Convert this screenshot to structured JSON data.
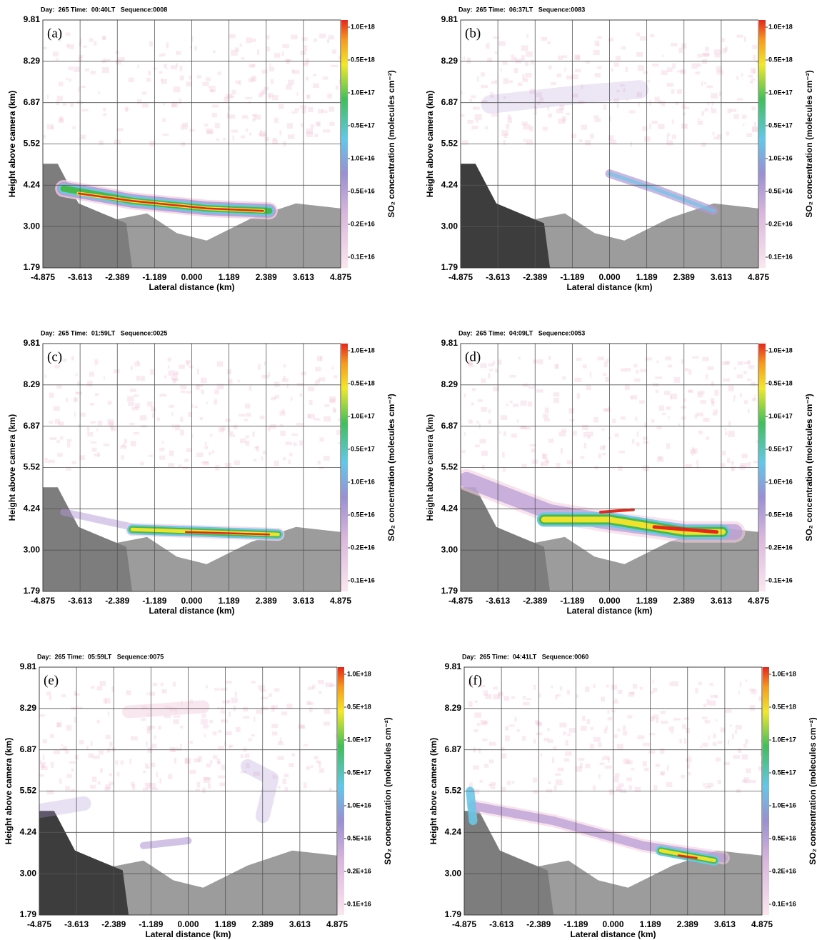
{
  "chart_data": [
    {
      "type": "image",
      "header": "Day:  265 Time:  00:40LT   Sequence:0008",
      "panel_label": "(a)",
      "x_label": "Lateral distance (km)",
      "y_label": "Height above camera (km)",
      "colorbar_label": "SO₂ concentration (molecules cm⁻²)",
      "xlim": [
        -4.875,
        4.875
      ],
      "xticks": [
        -4.875,
        -3.613,
        -2.389,
        -1.189,
        {
          "value": 0,
          "label": "0.000"
        },
        1.189,
        2.389,
        3.613,
        4.875
      ],
      "ylim": [
        1.79,
        9.81
      ],
      "yticks": [
        1.79,
        {
          "value": 3,
          "label": "3.00"
        },
        4.24,
        5.52,
        6.87,
        8.29,
        9.81
      ],
      "colorbar_ticks": [
        {
          "value": 1e+18,
          "label": "1.0E+18"
        },
        {
          "value": 5e+17,
          "label": "0.5E+18"
        },
        {
          "value": 1e+17,
          "label": "1.0E+17"
        },
        {
          "value": 5e+16,
          "label": "0.5E+17"
        },
        {
          "value": 1e+16,
          "label": "1.0E+16"
        },
        {
          "value": 5000000000000000.0,
          "label": "0.5E+16"
        },
        {
          "value": 2000000000000000.0,
          "label": "0.2E+16"
        },
        {
          "value": 1000000000000000.0,
          "label": "0.1E+16"
        }
      ],
      "grid": true
    },
    {
      "type": "image",
      "header": "Day:  265 Time:  06:37LT   Sequence:0083",
      "panel_label": "(b)",
      "x_label": "Lateral distance (km)",
      "y_label": "Height above camera (km)",
      "colorbar_label": "SO₂ concentration (molecules cm⁻²)",
      "xlim": [
        -4.875,
        4.875
      ],
      "xticks": [
        -4.875,
        -3.613,
        -2.389,
        -1.189,
        {
          "value": 0,
          "label": "0.000"
        },
        1.189,
        2.389,
        3.613,
        4.875
      ],
      "ylim": [
        1.79,
        9.81
      ],
      "yticks": [
        1.79,
        {
          "value": 3,
          "label": "3.00"
        },
        4.24,
        5.52,
        6.87,
        8.29,
        9.81
      ],
      "colorbar_ticks": [
        {
          "value": 1e+18,
          "label": "1.0E+18"
        },
        {
          "value": 5e+17,
          "label": "0.5E+18"
        },
        {
          "value": 1e+17,
          "label": "1.0E+17"
        },
        {
          "value": 5e+16,
          "label": "0.5E+17"
        },
        {
          "value": 1e+16,
          "label": "1.0E+16"
        },
        {
          "value": 5000000000000000.0,
          "label": "0.5E+16"
        },
        {
          "value": 2000000000000000.0,
          "label": "0.2E+16"
        },
        {
          "value": 1000000000000000.0,
          "label": "0.1E+16"
        }
      ],
      "grid": true
    },
    {
      "type": "image",
      "header": "Day:  265 Time:  01:59LT   Sequence:0025",
      "panel_label": "(c)",
      "x_label": "Lateral distance (km)",
      "y_label": "Height above camera (km)",
      "colorbar_label": "SO₂ concentration (molecules cm⁻²)",
      "xlim": [
        -4.875,
        4.875
      ],
      "xticks": [
        -4.875,
        -3.613,
        -2.389,
        -1.189,
        {
          "value": 0,
          "label": "0.000"
        },
        1.189,
        2.389,
        3.613,
        4.875
      ],
      "ylim": [
        1.79,
        9.81
      ],
      "yticks": [
        1.79,
        {
          "value": 3,
          "label": "3.00"
        },
        4.24,
        5.52,
        6.87,
        8.29,
        9.81
      ],
      "colorbar_ticks": [
        {
          "value": 1e+18,
          "label": "1.0E+18"
        },
        {
          "value": 5e+17,
          "label": "0.5E+18"
        },
        {
          "value": 1e+17,
          "label": "1.0E+17"
        },
        {
          "value": 5e+16,
          "label": "0.5E+17"
        },
        {
          "value": 1e+16,
          "label": "1.0E+16"
        },
        {
          "value": 5000000000000000.0,
          "label": "0.5E+16"
        },
        {
          "value": 2000000000000000.0,
          "label": "0.2E+16"
        },
        {
          "value": 1000000000000000.0,
          "label": "0.1E+16"
        }
      ],
      "grid": true
    },
    {
      "type": "image",
      "header": "Day:  265 Time:  04:09LT   Sequence:0053",
      "panel_label": "(d)",
      "x_label": "Lateral distance (km)",
      "y_label": "Height above camera (km)",
      "colorbar_label": "SO₂ concentration (molecules cm⁻²)",
      "xlim": [
        -4.875,
        4.875
      ],
      "xticks": [
        -4.875,
        -3.613,
        -2.389,
        -1.189,
        {
          "value": 0,
          "label": "0.000"
        },
        1.189,
        2.389,
        3.613,
        4.875
      ],
      "ylim": [
        1.79,
        9.81
      ],
      "yticks": [
        1.79,
        {
          "value": 3,
          "label": "3.00"
        },
        4.24,
        5.52,
        6.87,
        8.29,
        9.81
      ],
      "colorbar_ticks": [
        {
          "value": 1e+18,
          "label": "1.0E+18"
        },
        {
          "value": 5e+17,
          "label": "0.5E+18"
        },
        {
          "value": 1e+17,
          "label": "1.0E+17"
        },
        {
          "value": 5e+16,
          "label": "0.5E+17"
        },
        {
          "value": 1e+16,
          "label": "1.0E+16"
        },
        {
          "value": 5000000000000000.0,
          "label": "0.5E+16"
        },
        {
          "value": 2000000000000000.0,
          "label": "0.2E+16"
        },
        {
          "value": 1000000000000000.0,
          "label": "0.1E+16"
        }
      ],
      "grid": true
    },
    {
      "type": "image",
      "header": "Day:  265 Time:  05:59LT   Sequence:0075",
      "panel_label": "(e)",
      "x_label": "Lateral distance (km)",
      "y_label": "Height above camera (km)",
      "colorbar_label": "SO₂ concentration (molecules cm⁻²)",
      "xlim": [
        -4.875,
        4.875
      ],
      "xticks": [
        -4.875,
        -3.613,
        -2.389,
        -1.189,
        {
          "value": 0,
          "label": "0.000"
        },
        1.189,
        2.389,
        3.613,
        4.875
      ],
      "ylim": [
        1.79,
        9.81
      ],
      "yticks": [
        1.79,
        {
          "value": 3,
          "label": "3.00"
        },
        4.24,
        5.52,
        6.87,
        8.29,
        9.81
      ],
      "colorbar_ticks": [
        {
          "value": 1e+18,
          "label": "1.0E+18"
        },
        {
          "value": 5e+17,
          "label": "0.5E+18"
        },
        {
          "value": 1e+17,
          "label": "1.0E+17"
        },
        {
          "value": 5e+16,
          "label": "0.5E+17"
        },
        {
          "value": 1e+16,
          "label": "1.0E+16"
        },
        {
          "value": 5000000000000000.0,
          "label": "0.5E+16"
        },
        {
          "value": 2000000000000000.0,
          "label": "0.2E+16"
        },
        {
          "value": 1000000000000000.0,
          "label": "0.1E+16"
        }
      ],
      "grid": true
    },
    {
      "type": "image",
      "header": "Day:  265 Time:  04:41LT   Sequence:0060",
      "panel_label": "(f)",
      "x_label": "Lateral distance (km)",
      "y_label": "Height above camera (km)",
      "colorbar_label": "SO₂ concentration (molecules cm⁻²)",
      "xlim": [
        -4.875,
        4.875
      ],
      "xticks": [
        -4.875,
        -3.613,
        -2.389,
        -1.189,
        {
          "value": 0,
          "label": "0.000"
        },
        1.189,
        2.389,
        3.613,
        4.875
      ],
      "ylim": [
        1.79,
        9.81
      ],
      "yticks": [
        1.79,
        {
          "value": 3,
          "label": "3.00"
        },
        4.24,
        5.52,
        6.87,
        8.29,
        9.81
      ],
      "colorbar_ticks": [
        {
          "value": 1e+18,
          "label": "1.0E+18"
        },
        {
          "value": 5e+17,
          "label": "0.5E+18"
        },
        {
          "value": 1e+17,
          "label": "1.0E+17"
        },
        {
          "value": 5e+16,
          "label": "0.5E+17"
        },
        {
          "value": 1e+16,
          "label": "1.0E+16"
        },
        {
          "value": 5000000000000000.0,
          "label": "0.5E+16"
        },
        {
          "value": 2000000000000000.0,
          "label": "0.2E+16"
        },
        {
          "value": 1000000000000000.0,
          "label": "0.1E+16"
        }
      ],
      "grid": true
    }
  ]
}
